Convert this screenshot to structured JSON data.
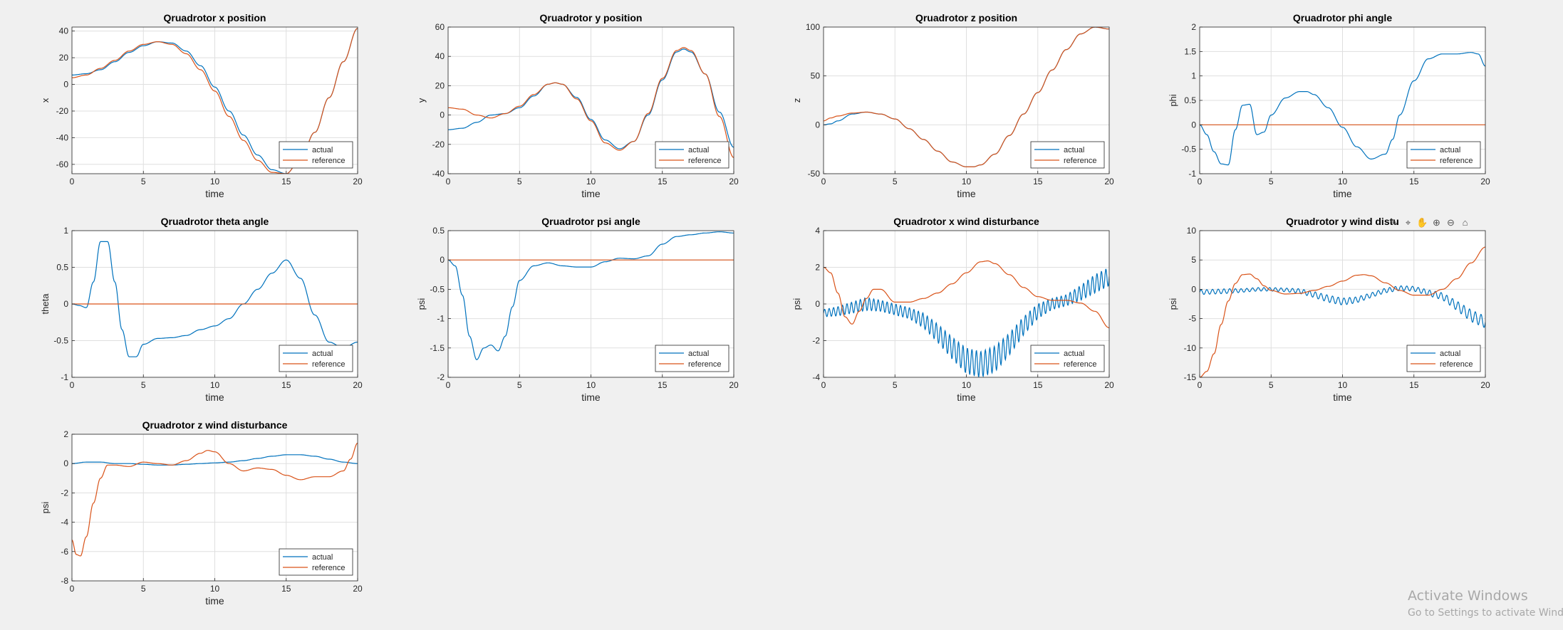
{
  "figure": {
    "background": "#f0f0f0",
    "series_colors": {
      "actual": "#0072bd",
      "reference": "#d95319"
    }
  },
  "toolbar": {
    "icons": [
      "brush-icon",
      "data-tips-icon",
      "pan-icon",
      "zoom-in-icon",
      "zoom-out-icon",
      "restore-view-icon"
    ]
  },
  "watermark": {
    "line1": "Activate Windows",
    "line2": "Go to Settings to activate Windows."
  },
  "chart_data": [
    {
      "type": "line",
      "title": "Qruadrotor x position",
      "xlabel": "time",
      "ylabel": "x",
      "xlim": [
        0,
        20
      ],
      "ylim": [
        -67,
        43
      ],
      "xticks": [
        0,
        5,
        10,
        15,
        20
      ],
      "yticks": [
        40,
        20,
        0,
        -20,
        -40,
        -60
      ],
      "grid": true,
      "legend": "bottom-right",
      "series": [
        {
          "name": "actual",
          "x": [
            0,
            1,
            2,
            3,
            4,
            5,
            6,
            7,
            8,
            9,
            10,
            11,
            12,
            13,
            14,
            15,
            16,
            17,
            18,
            19,
            20
          ],
          "values": [
            7,
            8,
            11,
            17,
            24,
            29,
            32,
            31,
            25,
            14,
            -2,
            -20,
            -38,
            -53,
            -64,
            -67,
            -56,
            -36,
            -10,
            17,
            42
          ]
        },
        {
          "name": "reference",
          "x": [
            0,
            1,
            2,
            3,
            4,
            5,
            6,
            7,
            8,
            9,
            10,
            11,
            12,
            13,
            14,
            15,
            16,
            17,
            18,
            19,
            20
          ],
          "values": [
            5,
            7,
            12,
            18,
            25,
            30,
            32,
            30,
            23,
            11,
            -5,
            -24,
            -42,
            -57,
            -66,
            -67,
            -56,
            -36,
            -10,
            17,
            42
          ]
        }
      ]
    },
    {
      "type": "line",
      "title": "Qruadrotor y position",
      "xlabel": "time",
      "ylabel": "y",
      "xlim": [
        0,
        20
      ],
      "ylim": [
        -40,
        60
      ],
      "xticks": [
        0,
        5,
        10,
        15,
        20
      ],
      "yticks": [
        60,
        40,
        20,
        0,
        -20,
        -40
      ],
      "grid": true,
      "legend": "bottom-right",
      "series": [
        {
          "name": "actual",
          "x": [
            0,
            1,
            2,
            3,
            4,
            5,
            6,
            7,
            7.5,
            8,
            9,
            10,
            11,
            12,
            13,
            14,
            15,
            16,
            16.5,
            17,
            18,
            19,
            20
          ],
          "values": [
            -10,
            -9,
            -5,
            0,
            1,
            5,
            13,
            21,
            22,
            21,
            12,
            -3,
            -17,
            -23,
            -18,
            0,
            24,
            43,
            45,
            43,
            28,
            2,
            -22
          ]
        },
        {
          "name": "reference",
          "x": [
            0,
            1,
            2,
            3,
            4,
            5,
            6,
            7,
            7.5,
            8,
            9,
            10,
            11,
            12,
            13,
            14,
            15,
            16,
            16.5,
            17,
            18,
            19,
            20
          ],
          "values": [
            5,
            4,
            0,
            -2,
            1,
            6,
            14,
            21,
            22,
            21,
            11,
            -4,
            -19,
            -24,
            -18,
            1,
            25,
            44,
            46,
            44,
            28,
            -1,
            -29
          ]
        }
      ]
    },
    {
      "type": "line",
      "title": "Qruadrotor z position",
      "xlabel": "time",
      "ylabel": "z",
      "xlim": [
        0,
        20
      ],
      "ylim": [
        -50,
        100
      ],
      "xticks": [
        0,
        5,
        10,
        15,
        20
      ],
      "yticks": [
        100,
        50,
        0,
        -50
      ],
      "grid": true,
      "legend": "bottom-right",
      "series": [
        {
          "name": "actual",
          "x": [
            0,
            0.5,
            1,
            2,
            3,
            4,
            5,
            6,
            7,
            8,
            9,
            10,
            10.5,
            11,
            12,
            13,
            14,
            15,
            16,
            17,
            18,
            19,
            20
          ],
          "values": [
            0,
            1,
            4,
            11,
            13,
            11,
            6,
            -4,
            -15,
            -27,
            -38,
            -43,
            -43,
            -41,
            -30,
            -11,
            11,
            33,
            56,
            77,
            93,
            100,
            98
          ]
        },
        {
          "name": "reference",
          "x": [
            0,
            0.5,
            1,
            2,
            3,
            4,
            5,
            6,
            7,
            8,
            9,
            10,
            10.5,
            11,
            12,
            13,
            14,
            15,
            16,
            17,
            18,
            19,
            20
          ],
          "values": [
            4,
            7,
            9,
            12,
            13,
            11,
            6,
            -4,
            -15,
            -27,
            -38,
            -43,
            -43,
            -41,
            -30,
            -11,
            11,
            33,
            56,
            77,
            93,
            100,
            98
          ]
        }
      ]
    },
    {
      "type": "line",
      "title": "Qruadrotor phi angle",
      "xlabel": "time",
      "ylabel": "phi",
      "xlim": [
        0,
        20
      ],
      "ylim": [
        -1,
        2
      ],
      "xticks": [
        0,
        5,
        10,
        15,
        20
      ],
      "yticks": [
        2,
        1.5,
        1,
        0.5,
        0,
        -0.5,
        -1
      ],
      "grid": true,
      "legend": "bottom-right",
      "series": [
        {
          "name": "actual",
          "x": [
            0,
            0.5,
            1,
            1.5,
            2,
            2.5,
            3,
            3.5,
            4,
            4.5,
            5,
            6,
            7,
            7.5,
            8,
            9,
            10,
            11,
            12,
            13,
            13.5,
            14,
            15,
            16,
            17,
            18,
            19,
            19.5,
            20
          ],
          "values": [
            0,
            -0.2,
            -0.55,
            -0.8,
            -0.82,
            -0.1,
            0.4,
            0.42,
            -0.2,
            -0.15,
            0.2,
            0.55,
            0.68,
            0.68,
            0.62,
            0.35,
            -0.05,
            -0.45,
            -0.7,
            -0.6,
            -0.3,
            0.2,
            0.9,
            1.35,
            1.45,
            1.45,
            1.48,
            1.45,
            1.2
          ]
        },
        {
          "name": "reference",
          "x": [
            0,
            20
          ],
          "values": [
            0,
            0
          ]
        }
      ]
    },
    {
      "type": "line",
      "title": "Qruadrotor theta angle",
      "xlabel": "time",
      "ylabel": "theta",
      "xlim": [
        0,
        20
      ],
      "ylim": [
        -1,
        1
      ],
      "xticks": [
        0,
        5,
        10,
        15,
        20
      ],
      "yticks": [
        1,
        0.5,
        0,
        -0.5,
        -1
      ],
      "grid": true,
      "legend": "bottom-right",
      "series": [
        {
          "name": "actual",
          "x": [
            0,
            0.5,
            1,
            1.5,
            2,
            2.5,
            3,
            3.5,
            4,
            4.5,
            5,
            6,
            7,
            8,
            9,
            10,
            11,
            12,
            13,
            14,
            15,
            16,
            17,
            18,
            19,
            20
          ],
          "values": [
            0,
            -0.02,
            -0.05,
            0.3,
            0.85,
            0.85,
            0.3,
            -0.35,
            -0.72,
            -0.72,
            -0.55,
            -0.47,
            -0.46,
            -0.43,
            -0.35,
            -0.3,
            -0.2,
            0,
            0.2,
            0.42,
            0.6,
            0.35,
            -0.15,
            -0.52,
            -0.6,
            -0.52
          ]
        },
        {
          "name": "reference",
          "x": [
            0,
            20
          ],
          "values": [
            0,
            0
          ]
        }
      ]
    },
    {
      "type": "line",
      "title": "Qruadrotor psi angle",
      "xlabel": "time",
      "ylabel": "psi",
      "xlim": [
        0,
        20
      ],
      "ylim": [
        -2,
        0.5
      ],
      "xticks": [
        0,
        5,
        10,
        15,
        20
      ],
      "yticks": [
        0.5,
        0,
        -0.5,
        -1,
        -1.5,
        -2
      ],
      "grid": true,
      "legend": "bottom-right",
      "series": [
        {
          "name": "actual",
          "x": [
            0,
            0.5,
            1,
            1.5,
            2,
            2.5,
            3,
            3.5,
            4,
            4.5,
            5,
            6,
            7,
            8,
            9,
            10,
            11,
            12,
            13,
            14,
            15,
            16,
            17,
            18,
            19,
            20
          ],
          "values": [
            0,
            -0.1,
            -0.6,
            -1.3,
            -1.7,
            -1.5,
            -1.45,
            -1.55,
            -1.3,
            -0.8,
            -0.35,
            -0.1,
            -0.05,
            -0.1,
            -0.12,
            -0.12,
            -0.03,
            0.03,
            0.02,
            0.07,
            0.27,
            0.4,
            0.43,
            0.46,
            0.48,
            0.46
          ]
        },
        {
          "name": "reference",
          "x": [
            0,
            20
          ],
          "values": [
            0,
            0
          ]
        }
      ]
    },
    {
      "type": "line",
      "title": "Qruadrotor x wind disturbance",
      "xlabel": "time",
      "ylabel": "psi",
      "xlim": [
        0,
        20
      ],
      "ylim": [
        -4,
        4
      ],
      "xticks": [
        0,
        5,
        10,
        15,
        20
      ],
      "yticks": [
        4,
        2,
        0,
        -2,
        -4
      ],
      "grid": true,
      "legend": "bottom-right",
      "series": [
        {
          "name": "actual",
          "x": [
            0,
            1,
            2,
            3,
            4,
            5,
            6,
            7,
            8,
            9,
            10,
            11,
            12,
            13,
            14,
            15,
            16,
            17,
            18,
            19,
            20
          ],
          "values": [
            -0.5,
            -0.4,
            -0.2,
            0,
            -0.1,
            -0.3,
            -0.5,
            -0.9,
            -1.6,
            -2.4,
            -3.1,
            -3.3,
            -3.0,
            -2.2,
            -1.2,
            -0.4,
            0,
            0.2,
            0.6,
            1.1,
            1.5
          ],
          "oscillation": {
            "amplitude": [
              0.2,
              0.25,
              0.3,
              0.35,
              0.3,
              0.3,
              0.3,
              0.4,
              0.5,
              0.6,
              0.7,
              0.7,
              0.7,
              0.6,
              0.5,
              0.4,
              0.3,
              0.3,
              0.4,
              0.5,
              0.5
            ],
            "cycles_per_unit": 3.2
          }
        },
        {
          "name": "reference",
          "x": [
            0,
            0.5,
            1,
            1.5,
            2,
            2.5,
            3,
            3.5,
            4,
            5,
            6,
            7,
            8,
            9,
            10,
            11,
            11.5,
            12,
            13,
            14,
            15,
            16,
            17,
            18,
            19,
            20
          ],
          "values": [
            2,
            1.7,
            0.6,
            -0.7,
            -1.1,
            -0.4,
            0.3,
            0.8,
            0.8,
            0.1,
            0.1,
            0.3,
            0.6,
            1.1,
            1.7,
            2.3,
            2.35,
            2.2,
            1.6,
            0.9,
            0.4,
            0.2,
            0.2,
            0.05,
            -0.4,
            -1.3
          ]
        }
      ]
    },
    {
      "type": "line",
      "title": "Qruadrotor y wind distu",
      "xlabel": "time",
      "ylabel": "psi",
      "xlim": [
        0,
        20
      ],
      "ylim": [
        -15,
        10
      ],
      "xticks": [
        0,
        5,
        10,
        15,
        20
      ],
      "yticks": [
        10,
        5,
        0,
        -5,
        -10,
        -15
      ],
      "grid": true,
      "legend": "bottom-right",
      "series": [
        {
          "name": "actual",
          "x": [
            0,
            1,
            2,
            3,
            4,
            5,
            6,
            7,
            8,
            9,
            10,
            11,
            12,
            13,
            14,
            15,
            16,
            17,
            18,
            19,
            20
          ],
          "values": [
            -0.5,
            -0.4,
            -0.3,
            -0.2,
            0,
            0,
            -0.1,
            -0.3,
            -0.9,
            -1.6,
            -2.1,
            -1.8,
            -1,
            -0.2,
            0.2,
            0.1,
            -0.6,
            -1.2,
            -2.8,
            -4.5,
            -5.6
          ],
          "oscillation": {
            "amplitude": [
              0.4,
              0.4,
              0.4,
              0.3,
              0.3,
              0.3,
              0.3,
              0.4,
              0.5,
              0.6,
              0.6,
              0.5,
              0.4,
              0.4,
              0.4,
              0.4,
              0.5,
              0.6,
              0.8,
              1.0,
              1.0
            ],
            "cycles_per_unit": 2.5
          }
        },
        {
          "name": "reference",
          "x": [
            0,
            0.5,
            1,
            1.5,
            2,
            2.5,
            3,
            3.5,
            4,
            4.5,
            5,
            6,
            7,
            8,
            9,
            10,
            11,
            11.5,
            12,
            13,
            14,
            15,
            16,
            17,
            18,
            19,
            20
          ],
          "values": [
            -15,
            -14,
            -11,
            -6,
            -2,
            1,
            2.5,
            2.6,
            1.8,
            0.6,
            -0.2,
            -0.8,
            -0.7,
            -0.2,
            0.5,
            1.4,
            2.4,
            2.5,
            2.3,
            1.1,
            -0.2,
            -1,
            -1,
            0,
            1.8,
            4.5,
            7.2
          ]
        }
      ]
    },
    {
      "type": "line",
      "title": "Qruadrotor z wind disturbance",
      "xlabel": "time",
      "ylabel": "psi",
      "xlim": [
        0,
        20
      ],
      "ylim": [
        -8,
        2
      ],
      "xticks": [
        0,
        5,
        10,
        15,
        20
      ],
      "yticks": [
        2,
        0,
        -2,
        -4,
        -6,
        -8
      ],
      "grid": true,
      "legend": "bottom-right",
      "series": [
        {
          "name": "actual",
          "x": [
            0,
            1,
            2,
            3,
            4,
            5,
            6,
            7,
            8,
            9,
            10,
            11,
            12,
            13,
            14,
            15,
            16,
            17,
            18,
            19,
            20
          ],
          "values": [
            0,
            0.1,
            0.1,
            0,
            0,
            -0.05,
            -0.1,
            -0.1,
            -0.05,
            0,
            0.05,
            0.1,
            0.2,
            0.35,
            0.5,
            0.6,
            0.6,
            0.5,
            0.3,
            0.1,
            0
          ]
        },
        {
          "name": "reference",
          "x": [
            0,
            0.3,
            0.6,
            1,
            1.5,
            2,
            2.5,
            3,
            4,
            5,
            6,
            7,
            8,
            9,
            9.5,
            10,
            11,
            12,
            13,
            14,
            15,
            16,
            17,
            18,
            19,
            19.5,
            20
          ],
          "values": [
            -5.2,
            -6.2,
            -6.3,
            -5,
            -2.7,
            -1,
            -0.1,
            -0.1,
            -0.2,
            0.1,
            0,
            -0.1,
            0.2,
            0.7,
            0.9,
            0.8,
            0,
            -0.5,
            -0.3,
            -0.4,
            -0.8,
            -1.1,
            -0.9,
            -0.9,
            -0.5,
            0.3,
            1.4
          ]
        }
      ]
    }
  ]
}
